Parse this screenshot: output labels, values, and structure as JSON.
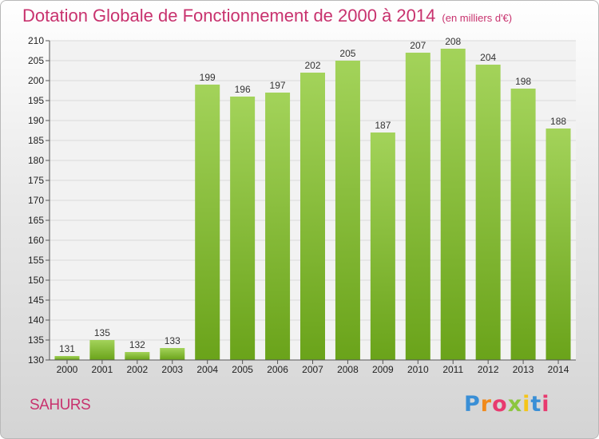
{
  "header": {
    "title": "Dotation Globale de Fonctionnement de 2000 à 2014",
    "unit": "(en milliers d'€)"
  },
  "footer": {
    "commune": "SAHURS",
    "logo_text": "Proxiti"
  },
  "colors": {
    "title": "#c8326e",
    "bar_light": "#a3d35a",
    "bar_dark": "#6aa31a",
    "logo_letters": [
      "#3a8fd6",
      "#f08a1c",
      "#e83a6f",
      "#8cc63f",
      "#f5c518",
      "#3a8fd6",
      "#e83a6f"
    ]
  },
  "chart_data": {
    "type": "bar",
    "title": "Dotation Globale de Fonctionnement de 2000 à 2014",
    "subtitle": "(en milliers d'€)",
    "xlabel": "",
    "ylabel": "",
    "categories": [
      "2000",
      "2001",
      "2002",
      "2003",
      "2004",
      "2005",
      "2006",
      "2007",
      "2008",
      "2009",
      "2010",
      "2011",
      "2012",
      "2013",
      "2014"
    ],
    "values": [
      131,
      135,
      132,
      133,
      199,
      196,
      197,
      202,
      205,
      187,
      207,
      208,
      204,
      198,
      188
    ],
    "ylim": [
      130,
      210
    ],
    "yticks": [
      130,
      135,
      140,
      145,
      150,
      155,
      160,
      165,
      170,
      175,
      180,
      185,
      190,
      195,
      200,
      205,
      210
    ],
    "grid": true
  }
}
